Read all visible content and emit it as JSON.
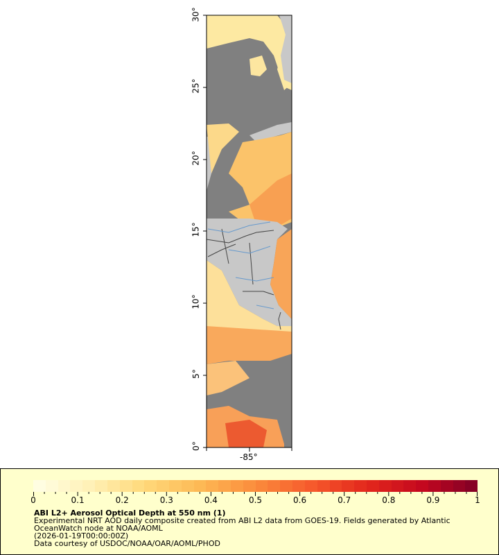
{
  "map": {
    "y_axis_labels": [
      "0°",
      "5°",
      "10°",
      "15°",
      "20°",
      "25°",
      "30°"
    ],
    "x_axis_labels": [
      "-85°"
    ],
    "colors": {
      "ocean_no_data": "#808080",
      "land": "#c8c8c8",
      "rivers": "#6699cc",
      "borders": "#333333"
    }
  },
  "legend": {
    "colorbar": {
      "min": 0,
      "max": 1,
      "tick_labels": [
        "0",
        "0.1",
        "0.2",
        "0.3",
        "0.4",
        "0.5",
        "0.6",
        "0.7",
        "0.8",
        "0.9",
        "1"
      ],
      "colors": [
        "#ffffe6",
        "#fff1b8",
        "#ffd97a",
        "#fdb955",
        "#fb8c3c",
        "#f65a2c",
        "#e3271c",
        "#c4081f",
        "#7f0026"
      ]
    },
    "title": "ABI L2+ Aerosol Optical Depth at 550 nm (1)",
    "line1": "Experimental NRT AOD daily composite created from ABI L2 data from GOES-19. Fields generated by Atlantic",
    "line2": "OceanWatch node at NOAA/AOML",
    "line3": "(2026-01-19T00:00:00Z)",
    "line4": "Data courtesy of USDOC/NOAA/OAR/AOML/PHOD"
  }
}
